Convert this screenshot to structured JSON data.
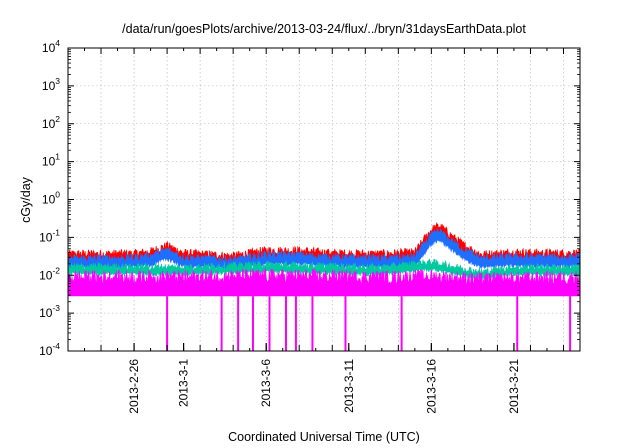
{
  "chart_data": {
    "type": "line",
    "title": "/data/run/goesPlots/archive/2013-03-24/flux/../bryn/31daysEarthData.plot",
    "xlabel": "Coordinated Universal Time (UTC)",
    "ylabel": "cGy/day",
    "yscale": "log",
    "ylim": [
      0.0001,
      10000
    ],
    "xlim": [
      "2013-02-22",
      "2013-03-25"
    ],
    "grid": true,
    "legend": "none",
    "y_ticks": [
      {
        "value": 0.0001,
        "base": "10",
        "exp": "-4"
      },
      {
        "value": 0.001,
        "base": "10",
        "exp": "-3"
      },
      {
        "value": 0.01,
        "base": "10",
        "exp": "-2"
      },
      {
        "value": 0.1,
        "base": "10",
        "exp": "-1"
      },
      {
        "value": 1,
        "base": "10",
        "exp": "0"
      },
      {
        "value": 10,
        "base": "10",
        "exp": "1"
      },
      {
        "value": 100,
        "base": "10",
        "exp": "2"
      },
      {
        "value": 1000,
        "base": "10",
        "exp": "3"
      },
      {
        "value": 10000,
        "base": "10",
        "exp": "4"
      }
    ],
    "x_ticks": [
      {
        "date": "2013-02-26",
        "label": "2013-2-26"
      },
      {
        "date": "2013-03-01",
        "label": "2013-3-1"
      },
      {
        "date": "2013-03-06",
        "label": "2013-3-6"
      },
      {
        "date": "2013-03-11",
        "label": "2013-3-11"
      },
      {
        "date": "2013-03-16",
        "label": "2013-3-16"
      },
      {
        "date": "2013-03-21",
        "label": "2013-3-21"
      }
    ],
    "series": [
      {
        "color": "#ff0000",
        "noise": 0.12,
        "points": [
          [
            "2013-02-22",
            0.036
          ],
          [
            "2013-02-26",
            0.037
          ],
          [
            "2013-02-27",
            0.042
          ],
          [
            "2013-02-28",
            0.06
          ],
          [
            "2013-03-01",
            0.038
          ],
          [
            "2013-03-04",
            0.032
          ],
          [
            "2013-03-06",
            0.045
          ],
          [
            "2013-03-08",
            0.044
          ],
          [
            "2013-03-10",
            0.038
          ],
          [
            "2013-03-13",
            0.036
          ],
          [
            "2013-03-15",
            0.04
          ],
          [
            "2013-03-16",
            0.16
          ],
          [
            "2013-03-16.5",
            0.2
          ],
          [
            "2013-03-17",
            0.13
          ],
          [
            "2013-03-18",
            0.06
          ],
          [
            "2013-03-19",
            0.035
          ],
          [
            "2013-03-21",
            0.04
          ],
          [
            "2013-03-23",
            0.038
          ],
          [
            "2013-03-25",
            0.038
          ]
        ]
      },
      {
        "color": "#1f6fff",
        "noise": 0.12,
        "points": [
          [
            "2013-02-22",
            0.027
          ],
          [
            "2013-02-26",
            0.028
          ],
          [
            "2013-02-27",
            0.032
          ],
          [
            "2013-02-28",
            0.045
          ],
          [
            "2013-03-01",
            0.029
          ],
          [
            "2013-03-04",
            0.025
          ],
          [
            "2013-03-06",
            0.034
          ],
          [
            "2013-03-08",
            0.033
          ],
          [
            "2013-03-10",
            0.029
          ],
          [
            "2013-03-13",
            0.027
          ],
          [
            "2013-03-15",
            0.03
          ],
          [
            "2013-03-16",
            0.11
          ],
          [
            "2013-03-16.5",
            0.14
          ],
          [
            "2013-03-17",
            0.09
          ],
          [
            "2013-03-18",
            0.045
          ],
          [
            "2013-03-19",
            0.027
          ],
          [
            "2013-03-21",
            0.03
          ],
          [
            "2013-03-23",
            0.029
          ],
          [
            "2013-03-25",
            0.029
          ]
        ]
      },
      {
        "color": "#00c8a0",
        "noise": 0.1,
        "points": [
          [
            "2013-02-22",
            0.017
          ],
          [
            "2013-03-01",
            0.016
          ],
          [
            "2013-03-06",
            0.019
          ],
          [
            "2013-03-13",
            0.016
          ],
          [
            "2013-03-16",
            0.022
          ],
          [
            "2013-03-17",
            0.018
          ],
          [
            "2013-03-19",
            0.012
          ],
          [
            "2013-03-21",
            0.016
          ],
          [
            "2013-03-25",
            0.016
          ]
        ]
      },
      {
        "color": "#ff00ff",
        "noise": 0.2,
        "points": [
          [
            "2013-02-22",
            0.0085
          ],
          [
            "2013-03-01",
            0.0085
          ],
          [
            "2013-03-06",
            0.0095
          ],
          [
            "2013-03-13",
            0.0085
          ],
          [
            "2013-03-16",
            0.009
          ],
          [
            "2013-03-19",
            0.0075
          ],
          [
            "2013-03-25",
            0.0085
          ]
        ],
        "floor": 0.0028,
        "dropouts": [
          "2013-02-28",
          "2013-03-03.3",
          "2013-03-04.3",
          "2013-03-05.2",
          "2013-03-06.2",
          "2013-03-07.2",
          "2013-03-07.8",
          "2013-03-08.8",
          "2013-03-10.8",
          "2013-03-14.2",
          "2013-03-21.2",
          "2013-03-24.4"
        ]
      }
    ]
  }
}
